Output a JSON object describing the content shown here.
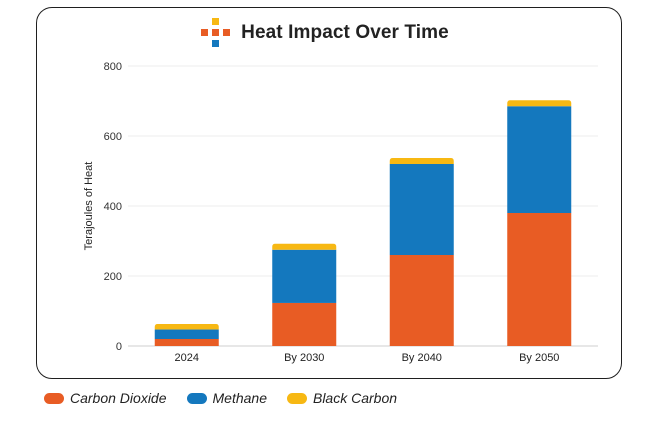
{
  "title": "Heat Impact Over Time",
  "logo_icon": "plus-grid-icon",
  "colors": {
    "carbon_dioxide": "#E85C24",
    "methane": "#1478BE",
    "black_carbon": "#F7B813",
    "logo_orange": "#E85C24",
    "logo_blue": "#1478BE",
    "logo_yellow": "#F7B813"
  },
  "chart_data": {
    "type": "bar",
    "stacked": true,
    "title": "Heat Impact Over Time",
    "xlabel": "",
    "ylabel": "Terajoules of Heat",
    "ylim": [
      0,
      800
    ],
    "yticks": [
      "0",
      "200",
      "400",
      "600",
      "800"
    ],
    "ytick_values": [
      0,
      200,
      400,
      600,
      800
    ],
    "categories": [
      "2024",
      "By 2030",
      "By 2040",
      "By 2050"
    ],
    "series": [
      {
        "name": "Carbon Dioxide",
        "color": "#E85C24",
        "values": [
          20,
          123,
          260,
          380
        ]
      },
      {
        "name": "Methane",
        "color": "#1478BE",
        "values": [
          27,
          152,
          260,
          305
        ]
      },
      {
        "name": "Black Carbon",
        "color": "#F7B813",
        "values": [
          16,
          17,
          17,
          17
        ]
      }
    ],
    "grid": true,
    "legend": "bottom-left"
  }
}
